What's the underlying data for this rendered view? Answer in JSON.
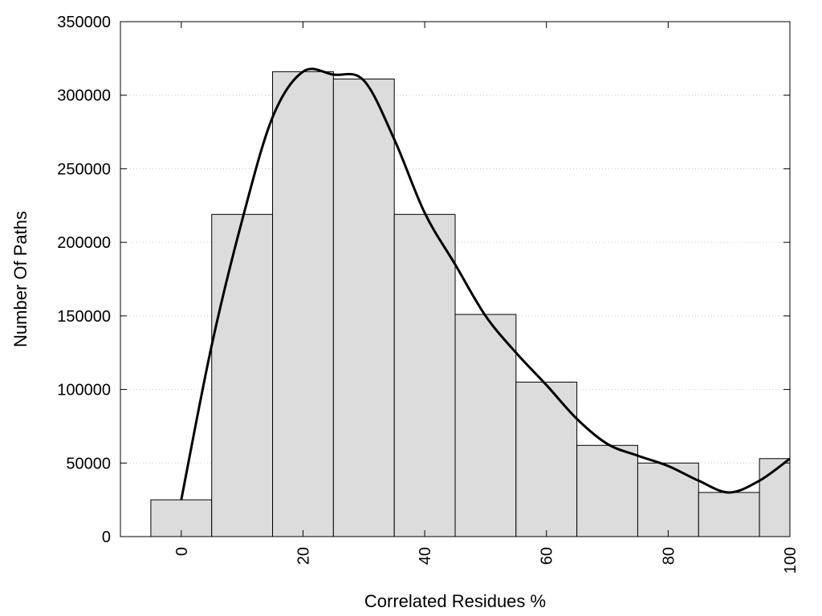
{
  "chart_data": {
    "type": "bar",
    "xlabel": "Correlated Residues %",
    "ylabel": "Number Of Paths",
    "xlim": [
      -10,
      100
    ],
    "ylim": [
      0,
      350000
    ],
    "grid": "horizontal dotted",
    "bin_width": 10,
    "x": [
      0,
      10,
      20,
      30,
      40,
      50,
      60,
      70,
      80,
      90,
      100
    ],
    "values": [
      25000,
      219000,
      316000,
      311000,
      219000,
      151000,
      105000,
      62000,
      50000,
      30000,
      53000
    ],
    "curve": {
      "x": [
        0,
        5,
        10,
        15,
        20,
        25,
        30,
        35,
        40,
        45,
        50,
        55,
        60,
        65,
        70,
        75,
        80,
        85,
        90,
        95,
        100
      ],
      "y": [
        25000,
        130000,
        215000,
        285000,
        316000,
        314000,
        310000,
        270000,
        220000,
        185000,
        150000,
        125000,
        103000,
        80000,
        63000,
        55000,
        48000,
        38000,
        30000,
        38000,
        53000
      ]
    },
    "xticks": [
      0,
      20,
      40,
      60,
      80,
      100
    ],
    "xtick_labels": [
      "0",
      "20",
      "40",
      "60",
      "80",
      "100"
    ],
    "yticks": [
      0,
      50000,
      100000,
      150000,
      200000,
      250000,
      300000,
      350000
    ],
    "ytick_labels": [
      "0",
      "50000",
      "100000",
      "150000",
      "200000",
      "250000",
      "300000",
      "350000"
    ],
    "colors": {
      "bar_fill": "#dcdcdc",
      "bar_stroke": "#000000",
      "curve": "#000000"
    }
  }
}
